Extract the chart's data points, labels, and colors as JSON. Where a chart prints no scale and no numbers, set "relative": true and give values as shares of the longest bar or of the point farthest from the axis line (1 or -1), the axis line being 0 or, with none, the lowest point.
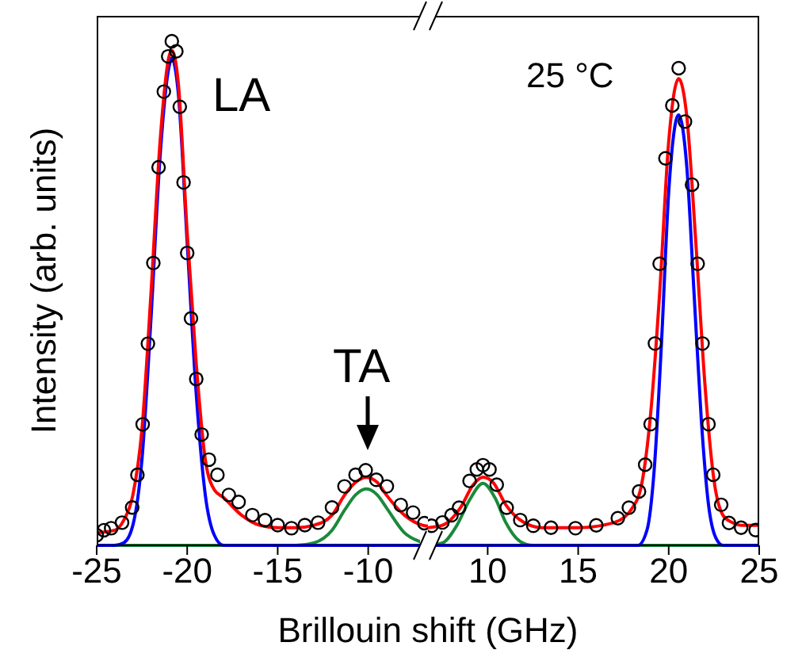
{
  "chart_data": [
    {
      "type": "line",
      "relative": true,
      "ylabel": "Intensity (arb. units)",
      "xlabel": "Brillouin shift (GHz)",
      "xlim": [
        -25,
        -6.7
      ],
      "xticks": [
        -25,
        -20,
        -15,
        -10
      ],
      "annotations": [
        "LA",
        "TA"
      ],
      "series": [
        {
          "type": "scatter",
          "marker": "circle",
          "color": "#000000",
          "x": [
            -25,
            -24.6,
            -24.2,
            -23.6,
            -23.04,
            -22.75,
            -22.46,
            -22.17,
            -21.87,
            -21.58,
            -21.29,
            -21.05,
            -20.85,
            -20.6,
            -20.41,
            -20.2,
            -20.0,
            -19.79,
            -19.5,
            -19.2,
            -18.8,
            -18.33,
            -17.7,
            -17.16,
            -16.4,
            -15.7,
            -15.0,
            -14.24,
            -13.5,
            -12.77,
            -12.0,
            -11.31,
            -10.7,
            -10.14,
            -9.55,
            -8.97,
            -8.2,
            -7.52,
            -6.9
          ],
          "values": [
            0.02,
            0.03,
            0.034,
            0.045,
            0.075,
            0.14,
            0.24,
            0.4,
            0.56,
            0.75,
            0.9,
            0.97,
            1,
            0.98,
            0.87,
            0.72,
            0.58,
            0.45,
            0.33,
            0.22,
            0.17,
            0.14,
            0.1,
            0.086,
            0.06,
            0.05,
            0.04,
            0.034,
            0.04,
            0.045,
            0.075,
            0.117,
            0.14,
            0.149,
            0.13,
            0.117,
            0.08,
            0.065,
            0.044
          ]
        },
        {
          "marker": "none",
          "color": "#1a8a3a",
          "x": [
            -25,
            -14,
            -13,
            -12,
            -11.3,
            -10.7,
            -10.1,
            -9.5,
            -9,
            -8,
            -7,
            -6.7
          ],
          "values": [
            0,
            0,
            0.005,
            0.03,
            0.07,
            0.1,
            0.112,
            0.1,
            0.075,
            0.025,
            0.005,
            0
          ]
        },
        {
          "marker": "none",
          "color": "#0000ff",
          "x": [
            -25,
            -24,
            -23.5,
            -23,
            -22.5,
            -22,
            -21.5,
            -21,
            -20.85,
            -20.5,
            -20,
            -19.5,
            -19,
            -18.5,
            -18,
            -17,
            -6.7
          ],
          "values": [
            0,
            0,
            0.005,
            0.04,
            0.17,
            0.45,
            0.77,
            0.95,
            0.966,
            0.9,
            0.6,
            0.3,
            0.1,
            0.02,
            0,
            0,
            0
          ]
        },
        {
          "marker": "none",
          "color": "#ff0000",
          "x": [
            -25,
            -24,
            -23.5,
            -23,
            -22.5,
            -22,
            -21.5,
            -21,
            -20.85,
            -20.5,
            -20,
            -19.5,
            -19,
            -18.5,
            -18,
            -17,
            -16,
            -15,
            -14,
            -13,
            -12,
            -11.3,
            -10.7,
            -10.1,
            -9.5,
            -9,
            -8,
            -7,
            -6.7
          ],
          "values": [
            0.025,
            0.03,
            0.05,
            0.1,
            0.23,
            0.5,
            0.8,
            0.97,
            0.982,
            0.92,
            0.62,
            0.36,
            0.17,
            0.11,
            0.095,
            0.06,
            0.04,
            0.035,
            0.035,
            0.04,
            0.06,
            0.1,
            0.125,
            0.135,
            0.125,
            0.1,
            0.06,
            0.04,
            0.038
          ]
        }
      ]
    },
    {
      "type": "line",
      "relative": true,
      "xlim": [
        6.7,
        25
      ],
      "xticks": [
        10,
        15,
        20,
        25
      ],
      "annotations": [
        "25 °C"
      ],
      "series": [
        {
          "type": "scatter",
          "marker": "circle",
          "color": "#000000",
          "x": [
            6.9,
            7.5,
            8.0,
            8.42,
            9.0,
            9.4,
            9.74,
            10.1,
            10.5,
            11.05,
            11.8,
            12.52,
            13.5,
            14.85,
            16.0,
            17.19,
            17.8,
            18.36,
            18.7,
            19.0,
            19.24,
            19.5,
            19.82,
            20.2,
            20.55,
            20.9,
            21.29,
            21.6,
            21.87,
            22.2,
            22.46,
            22.9,
            23.33,
            24.0,
            24.8
          ],
          "values": [
            0.041,
            0.048,
            0.063,
            0.079,
            0.135,
            0.159,
            0.168,
            0.159,
            0.127,
            0.079,
            0.053,
            0.041,
            0.037,
            0.036,
            0.042,
            0.057,
            0.079,
            0.113,
            0.169,
            0.254,
            0.423,
            0.59,
            0.811,
            0.922,
            1,
            0.888,
            0.756,
            0.59,
            0.423,
            0.254,
            0.148,
            0.085,
            0.047,
            0.037,
            0.032
          ]
        },
        {
          "marker": "none",
          "color": "#1a8a3a",
          "x": [
            6.7,
            7.5,
            8.3,
            9,
            9.74,
            10.4,
            11,
            11.8,
            12.5,
            25
          ],
          "values": [
            0,
            0.005,
            0.042,
            0.095,
            0.13,
            0.1,
            0.048,
            0.008,
            0,
            0
          ]
        },
        {
          "marker": "none",
          "color": "#0000ff",
          "x": [
            6.7,
            18.3,
            18.8,
            19.2,
            19.6,
            20,
            20.55,
            21,
            21.4,
            21.8,
            22.2,
            22.6,
            23,
            25
          ],
          "values": [
            0,
            0,
            0.032,
            0.159,
            0.423,
            0.74,
            0.902,
            0.793,
            0.529,
            0.264,
            0.085,
            0.016,
            0,
            0
          ]
        },
        {
          "marker": "none",
          "color": "#ff0000",
          "x": [
            6.7,
            7.5,
            8.5,
            9.2,
            9.74,
            10.3,
            11,
            12,
            13,
            15,
            17,
            18,
            18.5,
            19,
            19.5,
            20,
            20.55,
            21,
            21.5,
            22,
            22.5,
            23,
            23.5,
            24,
            25
          ],
          "values": [
            0.037,
            0.042,
            0.079,
            0.127,
            0.143,
            0.132,
            0.085,
            0.048,
            0.037,
            0.037,
            0.048,
            0.079,
            0.127,
            0.275,
            0.529,
            0.846,
            0.978,
            0.899,
            0.634,
            0.338,
            0.137,
            0.063,
            0.048,
            0.042,
            0.042
          ]
        }
      ]
    }
  ]
}
